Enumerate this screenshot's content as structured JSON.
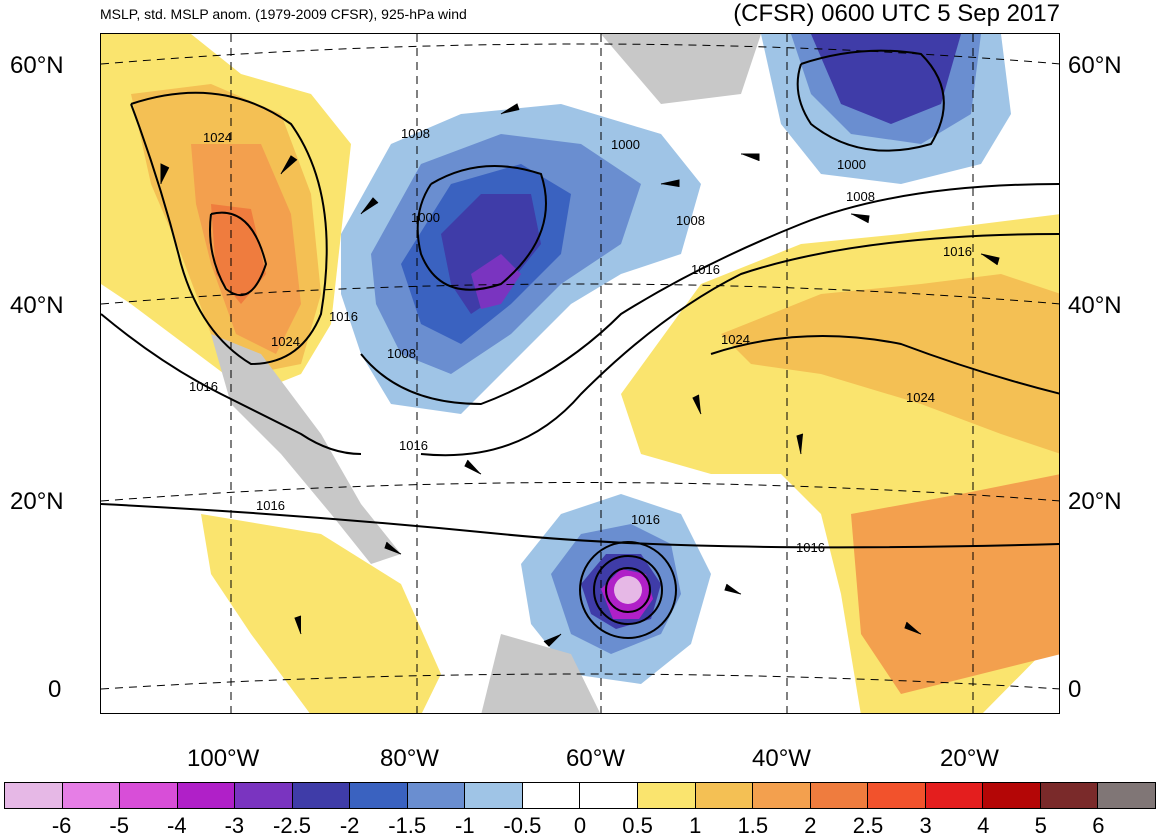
{
  "header": {
    "left_title": "MSLP, std. MSLP anom. (1979-2009 CFSR), 925-hPa wind",
    "right_title": "(CFSR) 0600 UTC 5 Sep 2017"
  },
  "latitude_labels": [
    "60°N",
    "40°N",
    "20°N",
    "0"
  ],
  "longitude_labels": [
    "100°W",
    "80°W",
    "60°W",
    "40°W",
    "20°W"
  ],
  "isobar_labels": [
    "1024",
    "1024",
    "1016",
    "1016",
    "1016",
    "1016",
    "1008",
    "1008",
    "1000",
    "1000",
    "1008",
    "1016",
    "1016",
    "1000",
    "1008",
    "1016",
    "1024",
    "1024",
    "1016"
  ],
  "colorbar": {
    "colors": [
      "#e6b8e6",
      "#e67ee6",
      "#d84ed8",
      "#b020c8",
      "#7a34c0",
      "#3f3ca8",
      "#3a62c0",
      "#6a8ed0",
      "#9fc4e6",
      "#ffffff",
      "#ffffff",
      "#fae46e",
      "#f4c054",
      "#f3a04e",
      "#ef7c3e",
      "#f2522c",
      "#e41e1e",
      "#b40606",
      "#7a2a2a",
      "#807676"
    ],
    "tick_labels": [
      "-6",
      "-5",
      "-4",
      "-3",
      "-2.5",
      "-2",
      "-1.5",
      "-1",
      "-0.5",
      "0",
      "0.5",
      "1",
      "1.5",
      "2",
      "2.5",
      "3",
      "4",
      "5",
      "6"
    ]
  },
  "palette": {
    "land": "#c8c8c8",
    "isobar": "#000000",
    "wind_barb": "#000000",
    "grid": "#000000"
  }
}
